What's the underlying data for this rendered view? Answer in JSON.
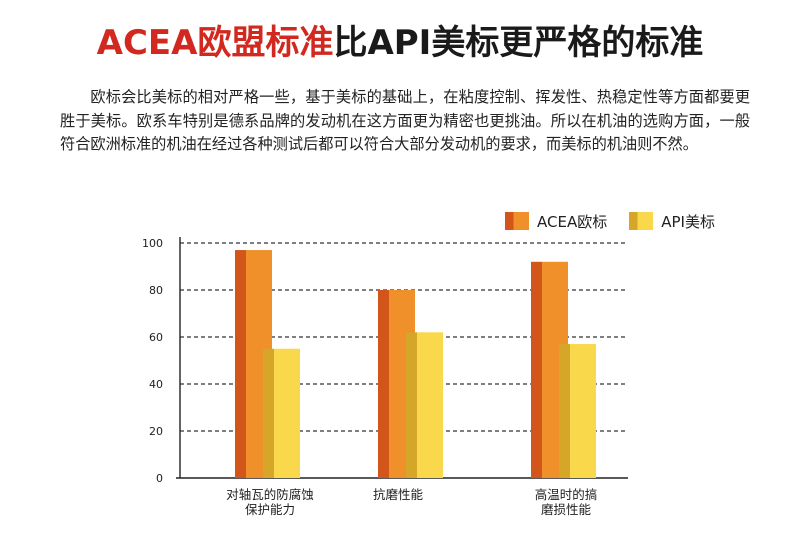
{
  "header": {
    "title_red": "ACEA欧盟标准",
    "title_black": "比API美标更严格的标准"
  },
  "intro": {
    "paragraph": "欧标会比美标的相对严格一些，基于美标的基础上，在粘度控制、挥发性、热稳定性等方面都要更胜于美标。欧系车特别是德系品牌的发动机在这方面更为精密也更挑油。所以在机油的选购方面，一般符合欧洲标准的机油在经过各种测试后都可以符合大部分发动机的要求，而美标的机油则不然。"
  },
  "colors": {
    "acea_front": "#f0902b",
    "acea_side": "#d2561a",
    "api_front": "#f9d84c",
    "api_side": "#d6a628",
    "grid": "#333333"
  },
  "chart_data": {
    "type": "bar",
    "categories": [
      "对轴瓦的防腐蚀\n保护能力",
      "抗磨性能",
      "高温时的搞\n磨损性能"
    ],
    "series": [
      {
        "name": "ACEA欧标",
        "values": [
          97,
          80,
          92
        ]
      },
      {
        "name": "API美标",
        "values": [
          55,
          62,
          57
        ]
      }
    ],
    "yticks": [
      0,
      20,
      40,
      60,
      80,
      100
    ],
    "ylim": [
      0,
      100
    ],
    "title": "",
    "xlabel": "",
    "ylabel": "",
    "grid": true,
    "legend_position": "top-right"
  }
}
